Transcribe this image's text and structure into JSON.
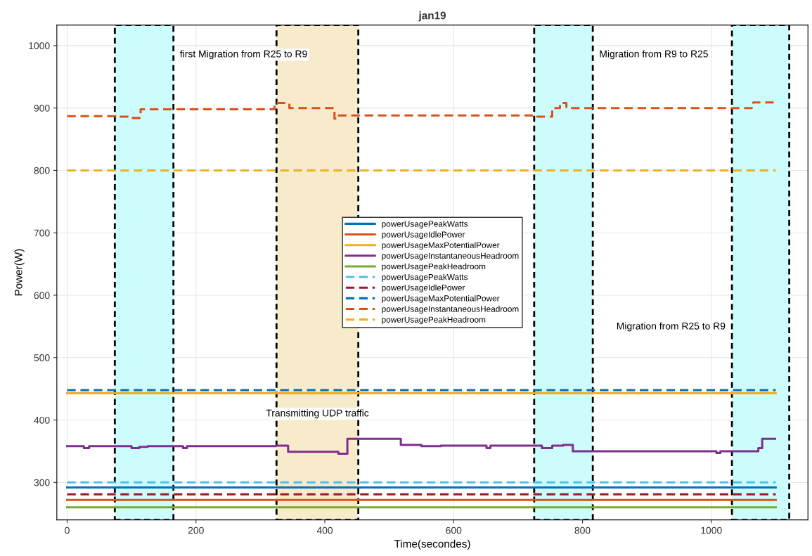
{
  "chart_data": {
    "type": "line",
    "title": "jan19",
    "xlabel": "Time(secondes)",
    "ylabel": "Power(W)",
    "xlim": [
      -16,
      1150
    ],
    "ylim": [
      240,
      1033
    ],
    "xticks": [
      0,
      200,
      400,
      600,
      800,
      1000
    ],
    "yticks": [
      300,
      400,
      500,
      600,
      700,
      800,
      900,
      1000
    ],
    "grid": true,
    "legend": "center",
    "series": [
      {
        "name": "powerUsagePeakWatts",
        "color": "#0072bd",
        "line_style": "solid",
        "x": [
          0,
          1100
        ],
        "values": [
          292,
          292
        ]
      },
      {
        "name": "powerUsageIdlePower",
        "color": "#d95319",
        "line_style": "solid",
        "x": [
          0,
          1100
        ],
        "values": [
          272,
          272
        ]
      },
      {
        "name": "powerUsageMaxPotentialPower",
        "color": "#edb120",
        "line_style": "solid",
        "x": [
          0,
          1100
        ],
        "values": [
          443,
          443
        ]
      },
      {
        "name": "powerUsageInstantaneousHeadroom",
        "color": "#7e2f8e",
        "line_style": "solid",
        "x": [
          0,
          26,
          26,
          34,
          34,
          100,
          100,
          112,
          112,
          125,
          125,
          180,
          180,
          186,
          186,
          324,
          324,
          343,
          343,
          421,
          421,
          435,
          435,
          518,
          518,
          550,
          550,
          580,
          580,
          651,
          651,
          657,
          657,
          737,
          737,
          753,
          753,
          770,
          770,
          785,
          785,
          1008,
          1008,
          1014,
          1014,
          1073,
          1073,
          1079,
          1079,
          1099
        ],
        "values": [
          358,
          358,
          355,
          355,
          358,
          358,
          355,
          355,
          357,
          357,
          358,
          358,
          355,
          355,
          358,
          358,
          359,
          359,
          349,
          349,
          346,
          346,
          370,
          370,
          360,
          360,
          358,
          358,
          359,
          359,
          355,
          355,
          359,
          359,
          355,
          355,
          359,
          359,
          360,
          360,
          350,
          350,
          347,
          347,
          350,
          350,
          355,
          355,
          370,
          370
        ]
      },
      {
        "name": "powerUsagePeakHeadroom",
        "color": "#77ac30",
        "line_style": "solid",
        "x": [
          0,
          1100
        ],
        "values": [
          260,
          260
        ]
      },
      {
        "name": "powerUsagePeakWatts",
        "color": "#4dbeee",
        "line_style": "dashed",
        "x": [
          0,
          1100
        ],
        "values": [
          300,
          300
        ]
      },
      {
        "name": "powerUsageIdlePower",
        "color": "#a2142f",
        "line_style": "dashed",
        "x": [
          0,
          1100
        ],
        "values": [
          281,
          281
        ]
      },
      {
        "name": "powerUsageMaxPotentialPower",
        "color": "#0072bd",
        "line_style": "dashed",
        "x": [
          0,
          1100
        ],
        "values": [
          448,
          448
        ]
      },
      {
        "name": "powerUsageInstantaneousHeadroom",
        "color": "#d95319",
        "line_style": "dashed",
        "x": [
          0,
          75,
          75,
          100,
          100,
          114,
          114,
          322,
          322,
          345,
          345,
          415,
          415,
          418,
          418,
          725,
          725,
          753,
          753,
          765,
          765,
          775,
          775,
          1065,
          1065,
          1099
        ],
        "values": [
          887,
          887,
          886,
          886,
          884,
          884,
          898,
          898,
          908,
          908,
          900,
          900,
          883,
          883,
          888,
          888,
          886,
          886,
          900,
          900,
          908,
          908,
          900,
          900,
          909,
          909
        ]
      },
      {
        "name": "powerUsagePeakHeadroom",
        "color": "#edb120",
        "line_style": "dashed",
        "x": [
          0,
          1100
        ],
        "values": [
          800,
          800
        ]
      }
    ],
    "bands": [
      {
        "axis": "x",
        "from": 74,
        "to": 165,
        "label": "first Migration from R25 to R9",
        "color": "#ccfcfc"
      },
      {
        "axis": "x",
        "from": 725,
        "to": 816,
        "label": "Migration from R9 to R25",
        "color": "#ccfcfc"
      },
      {
        "axis": "x",
        "from": 1032,
        "to": 1121,
        "label": "Migration from R25 to R9",
        "color": "#ccfcfc"
      },
      {
        "axis": "x",
        "from": 325,
        "to": 452,
        "label": "Transmitting UDP traffic",
        "color": "#f7ebcc"
      }
    ]
  }
}
